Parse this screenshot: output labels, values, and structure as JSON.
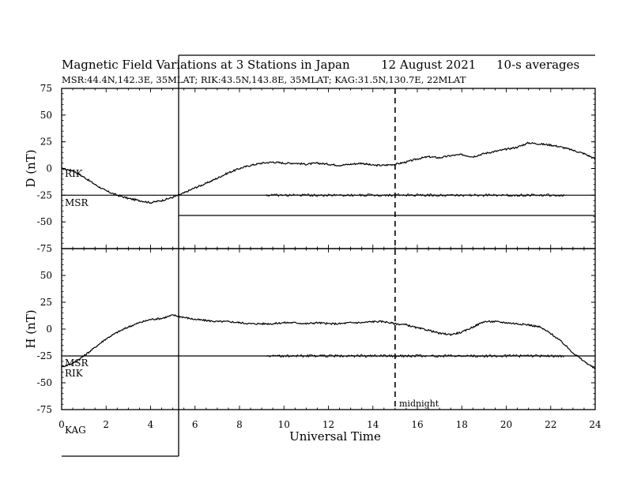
{
  "chart_data": {
    "type": "line",
    "title": "Magnetic Field Variations at 3 Stations in Japan",
    "date": "12 August  2021",
    "averaging": "10-s averages",
    "subtitle": "MSR:44.4N,142.3E, 35MLAT;  RIK:43.5N,143.8E, 35MLAT;  KAG:31.5N,130.7E, 22MLAT",
    "xlabel": "Universal Time",
    "xlim": [
      0,
      24
    ],
    "xticks": [
      "0",
      "2",
      "4",
      "6",
      "8",
      "10",
      "12",
      "14",
      "16",
      "18",
      "20",
      "22",
      "24"
    ],
    "annotation": {
      "text": "midnight",
      "x": 15
    },
    "panels": [
      {
        "ylabel": "D (nT)",
        "ylim": [
          -75,
          75
        ],
        "yticks": [
          "75",
          "50",
          "25",
          "0",
          "-25",
          "-50",
          "-75"
        ],
        "station_labels": [
          "RIK",
          "MSR"
        ],
        "series": [
          {
            "name": "RIK",
            "x": [
              0,
              0.5,
              1,
              1.5,
              2,
              2.5,
              3,
              3.5,
              4,
              4.5,
              5,
              5.5,
              6,
              6.5,
              7,
              7.5,
              8,
              8.5,
              9,
              9.5,
              10,
              10.5,
              11,
              11.5,
              12,
              12.5,
              13,
              13.5,
              14,
              14.5,
              15,
              15.5,
              16,
              16.5,
              17,
              17.5,
              18,
              18.5,
              19,
              19.5,
              20,
              20.5,
              21,
              21.5,
              22,
              22.5,
              23,
              23.5,
              24
            ],
            "values": [
              0,
              -2,
              -8,
              -15,
              -21,
              -25,
              -28,
              -30,
              -32,
              -30,
              -27,
              -23,
              -18,
              -14,
              -9,
              -4,
              0,
              3,
              5,
              6,
              5,
              5,
              4,
              5,
              4,
              3,
              4,
              5,
              3,
              3,
              4,
              6,
              9,
              11,
              10,
              12,
              13,
              11,
              14,
              16,
              18,
              20,
              24,
              23,
              22,
              20,
              17,
              14,
              9
            ]
          },
          {
            "name": "MSR",
            "x": [
              0,
              2,
              4,
              6,
              8,
              9.2,
              10,
              12,
              14,
              16,
              18,
              20,
              22,
              22.6,
              24
            ],
            "values": [
              -25,
              -25,
              -25,
              -25,
              -25,
              -25,
              -25,
              -25,
              -25,
              -25,
              -25,
              -25,
              -25,
              -25,
              -25
            ]
          }
        ]
      },
      {
        "ylabel": "H (nT)",
        "ylim": [
          -75,
          75
        ],
        "yticks": [
          "75",
          "50",
          "25",
          "0",
          "-25",
          "-50",
          "-75"
        ],
        "station_labels": [
          "MSR",
          "RIK"
        ],
        "series": [
          {
            "name": "RIK",
            "x": [
              0,
              0.5,
              1,
              1.5,
              2,
              2.5,
              3,
              3.5,
              4,
              4.5,
              5,
              5.5,
              6,
              6.5,
              7,
              7.5,
              8,
              8.5,
              9,
              9.5,
              10,
              10.5,
              11,
              11.5,
              12,
              12.5,
              13,
              13.5,
              14,
              14.5,
              15,
              15.5,
              16,
              16.5,
              17,
              17.5,
              18,
              18.5,
              19,
              19.5,
              20,
              20.5,
              21,
              21.5,
              22,
              22.5,
              23,
              23.5,
              24
            ],
            "values": [
              -35,
              -32,
              -25,
              -17,
              -9,
              -3,
              2,
              6,
              9,
              10,
              13,
              11,
              9,
              8,
              7,
              7,
              6,
              5,
              5,
              5,
              6,
              6,
              5,
              6,
              5,
              5,
              6,
              6,
              7,
              7,
              5,
              4,
              1,
              -1,
              -4,
              -5,
              -3,
              2,
              7,
              7,
              6,
              5,
              4,
              2,
              -4,
              -12,
              -22,
              -30,
              -37
            ]
          },
          {
            "name": "MSR",
            "x": [
              0,
              2,
              4,
              6,
              8,
              9.2,
              10,
              12,
              14,
              16,
              18,
              20,
              22,
              22.6,
              24
            ],
            "values": [
              -25,
              -25,
              -25,
              -25,
              -25,
              -25,
              -25,
              -25,
              -25,
              -25,
              -25,
              -25,
              -25,
              -25,
              -25
            ]
          }
        ]
      }
    ],
    "kag_label": "KAG"
  }
}
